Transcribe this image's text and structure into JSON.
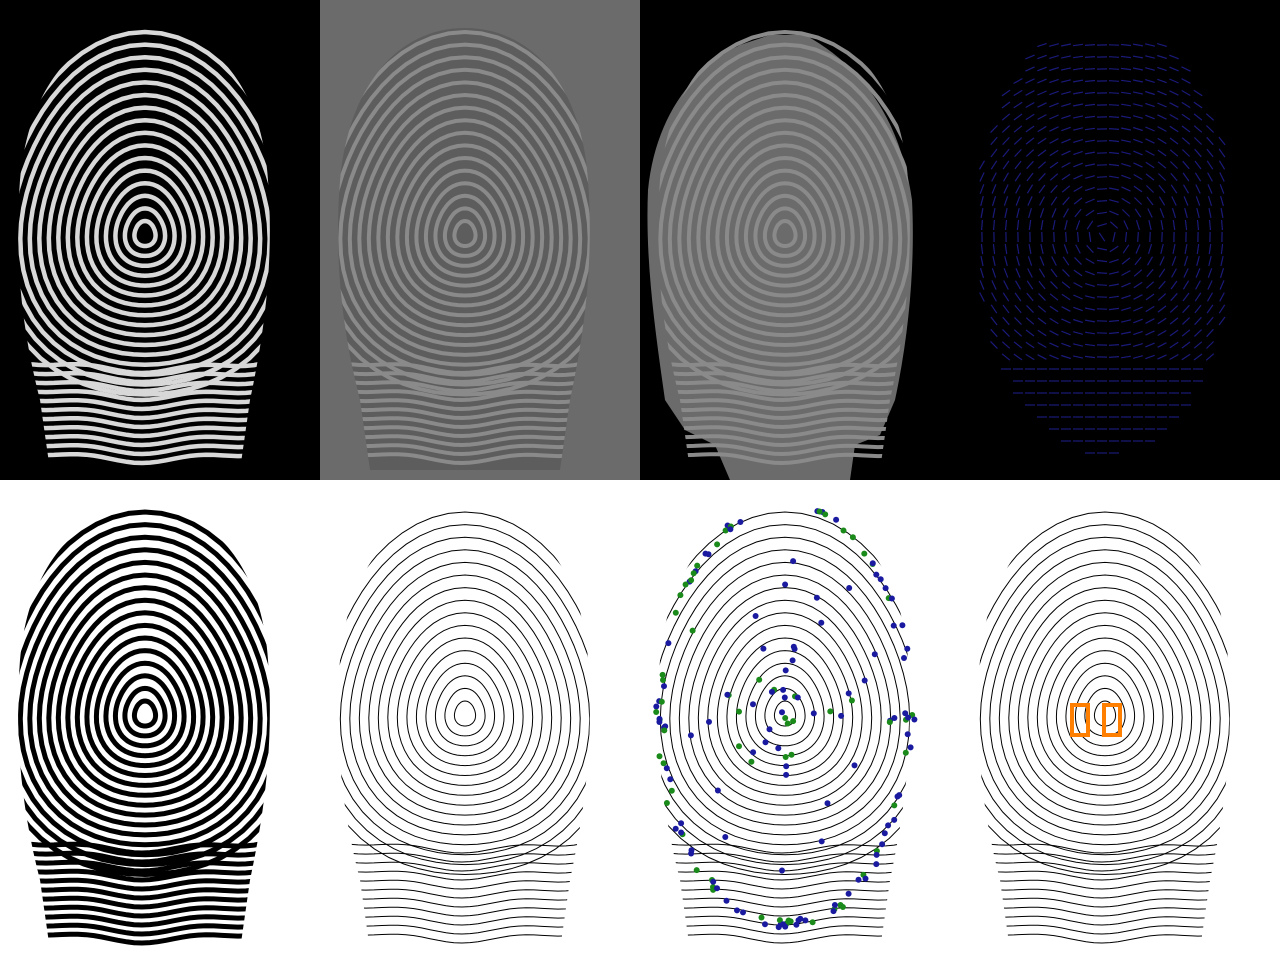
{
  "layout_grid": {
    "rows": 2,
    "cols": 4
  },
  "panels": [
    {
      "name": "original-fingerprint",
      "kind": "raw",
      "background": "#000000"
    },
    {
      "name": "normalized-fingerprint",
      "kind": "normalized",
      "background": "#6b6b6b"
    },
    {
      "name": "segmented-fingerprint",
      "kind": "segmented",
      "background": "#000000"
    },
    {
      "name": "orientation-field",
      "kind": "orientation",
      "background": "#000000"
    },
    {
      "name": "binarized-fingerprint",
      "kind": "binary",
      "background": "#ffffff"
    },
    {
      "name": "thinned-skeleton",
      "kind": "skeleton",
      "background": "#ffffff"
    },
    {
      "name": "minutiae-points",
      "kind": "minutiae",
      "background": "#ffffff"
    },
    {
      "name": "singular-points",
      "kind": "singular",
      "background": "#ffffff"
    }
  ],
  "colors": {
    "ridge_light": "#d8d8d8",
    "ridge_gray": "#8a8a8a",
    "ridge_dark": "#000000",
    "orientation_line": "#1a1a7a",
    "termination": "#1a1aa0",
    "bifurcation": "#1a8a1a",
    "singular_point": "#ff7f00"
  },
  "minutiae_summary": {
    "termination_color_name": "blue",
    "bifurcation_color_name": "green"
  },
  "singular_points": {
    "count": 2,
    "type": "core"
  }
}
